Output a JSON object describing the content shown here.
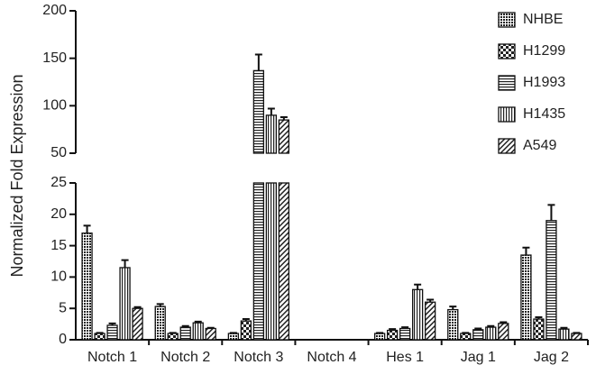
{
  "chart_data": {
    "type": "bar",
    "y_label": "Normalized Fold Expression",
    "categories": [
      "Notch 1",
      "Notch 2",
      "Notch 3",
      "Notch 4",
      "Hes 1",
      "Jag 1",
      "Jag 2"
    ],
    "ylim": [
      0,
      200
    ],
    "ybreak": [
      25,
      50
    ],
    "yticks": [
      0,
      5,
      10,
      15,
      20,
      25,
      50,
      100,
      150,
      200
    ],
    "legend": "top-right",
    "series": [
      {
        "name": "NHBE",
        "pattern": "crosshatch",
        "values": [
          17,
          5.3,
          1,
          0,
          1,
          4.8,
          13.5
        ],
        "errors": [
          1.2,
          0.4,
          0.1,
          0,
          0.1,
          0.5,
          1.2
        ]
      },
      {
        "name": "H1299",
        "pattern": "checker",
        "values": [
          1,
          1,
          3,
          0,
          1.5,
          1,
          3.3
        ],
        "errors": [
          0.1,
          0.1,
          0.3,
          0,
          0.2,
          0.1,
          0.3
        ]
      },
      {
        "name": "H1993",
        "pattern": "horizontal",
        "values": [
          2.3,
          2,
          137,
          0,
          1.8,
          1.6,
          19
        ],
        "errors": [
          0.3,
          0.2,
          17,
          0,
          0.2,
          0.2,
          2.5
        ]
      },
      {
        "name": "H1435",
        "pattern": "vertical",
        "values": [
          11.5,
          2.7,
          90,
          0,
          8,
          2,
          1.7
        ],
        "errors": [
          1.2,
          0.2,
          7,
          0,
          0.8,
          0.2,
          0.2
        ]
      },
      {
        "name": "A549",
        "pattern": "diagonal",
        "values": [
          5,
          1.8,
          85,
          0,
          6,
          2.6,
          1
        ],
        "errors": [
          0.2,
          0.1,
          3,
          0,
          0.4,
          0.2,
          0.1
        ]
      }
    ]
  }
}
